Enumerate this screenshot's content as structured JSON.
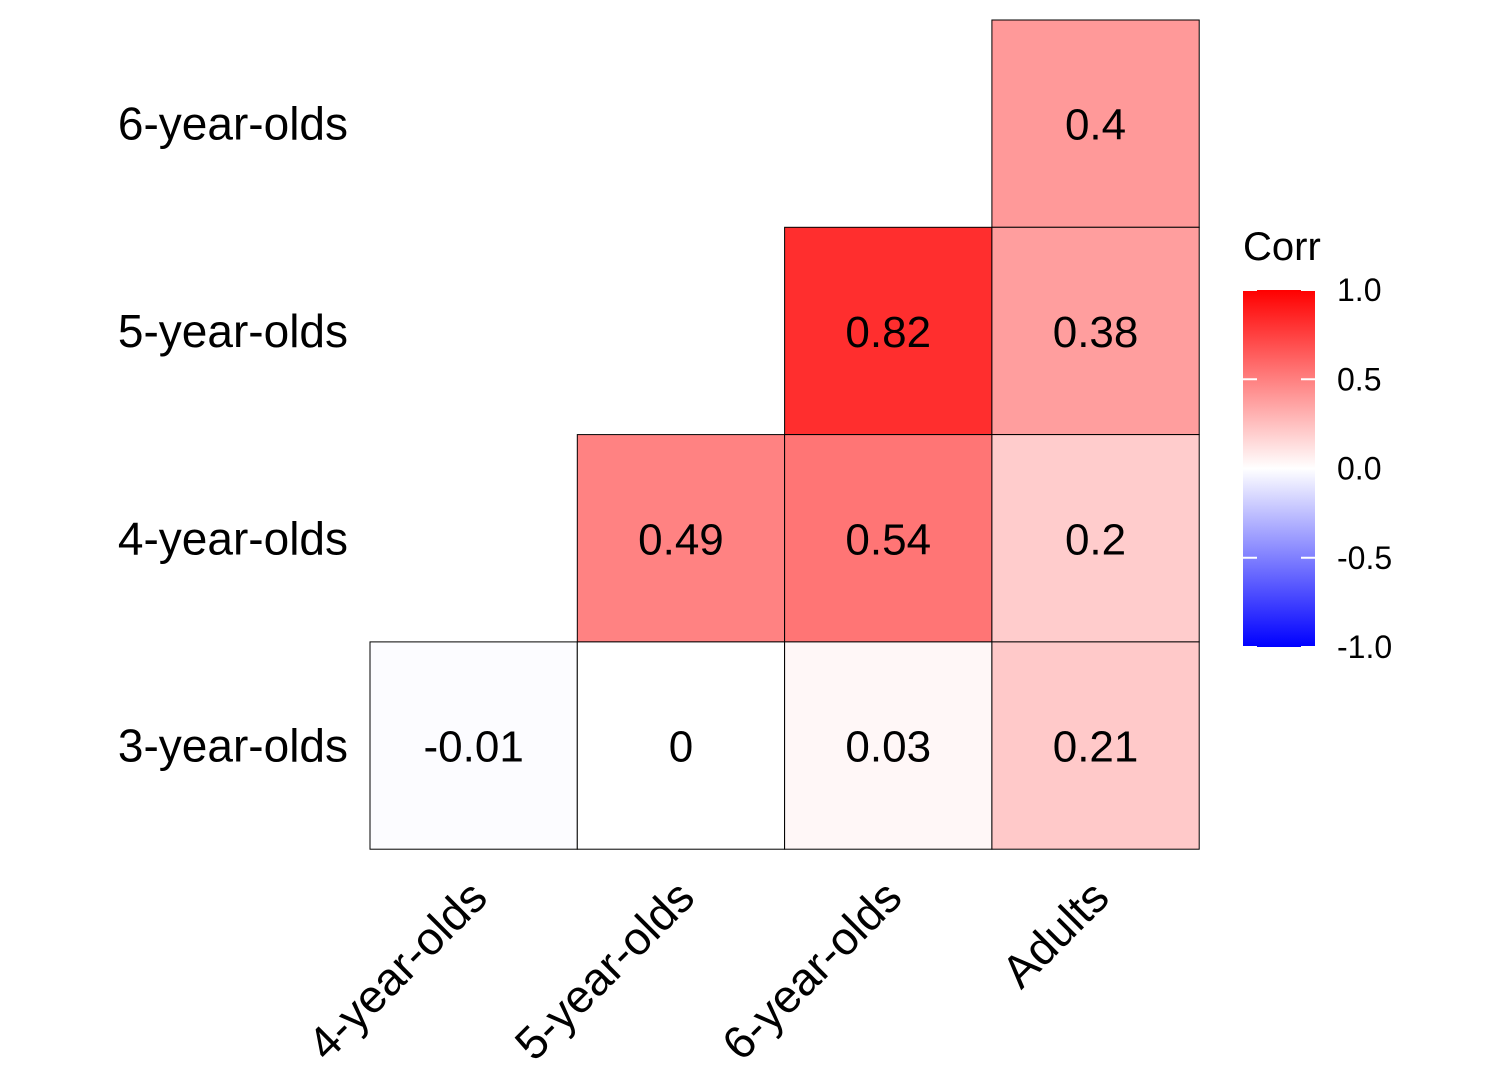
{
  "chart_data": {
    "type": "heatmap",
    "rows": [
      "6-year-olds",
      "5-year-olds",
      "4-year-olds",
      "3-year-olds"
    ],
    "columns": [
      "4-year-olds",
      "5-year-olds",
      "6-year-olds",
      "Adults"
    ],
    "cells": [
      {
        "row": "6-year-olds",
        "column": "Adults",
        "value": 0.4,
        "label": "0.4"
      },
      {
        "row": "5-year-olds",
        "column": "6-year-olds",
        "value": 0.82,
        "label": "0.82"
      },
      {
        "row": "5-year-olds",
        "column": "Adults",
        "value": 0.38,
        "label": "0.38"
      },
      {
        "row": "4-year-olds",
        "column": "5-year-olds",
        "value": 0.49,
        "label": "0.49"
      },
      {
        "row": "4-year-olds",
        "column": "6-year-olds",
        "value": 0.54,
        "label": "0.54"
      },
      {
        "row": "4-year-olds",
        "column": "Adults",
        "value": 0.2,
        "label": "0.2"
      },
      {
        "row": "3-year-olds",
        "column": "4-year-olds",
        "value": -0.01,
        "label": "-0.01"
      },
      {
        "row": "3-year-olds",
        "column": "5-year-olds",
        "value": 0,
        "label": "0"
      },
      {
        "row": "3-year-olds",
        "column": "6-year-olds",
        "value": 0.03,
        "label": "0.03"
      },
      {
        "row": "3-year-olds",
        "column": "Adults",
        "value": 0.21,
        "label": "0.21"
      }
    ],
    "legend": {
      "title": "Corr",
      "range": [
        -1,
        1
      ],
      "ticks": [
        1.0,
        0.5,
        0.0,
        -0.5,
        -1.0
      ],
      "tick_labels": [
        "1.0",
        "0.5",
        "0.0",
        "-0.5",
        "-1.0"
      ],
      "placement": "right",
      "colors": {
        "low": "#0000FF",
        "mid": "#FFFFFF",
        "high": "#FF0000"
      }
    },
    "colors": {
      "cell_border": "#000000"
    }
  }
}
